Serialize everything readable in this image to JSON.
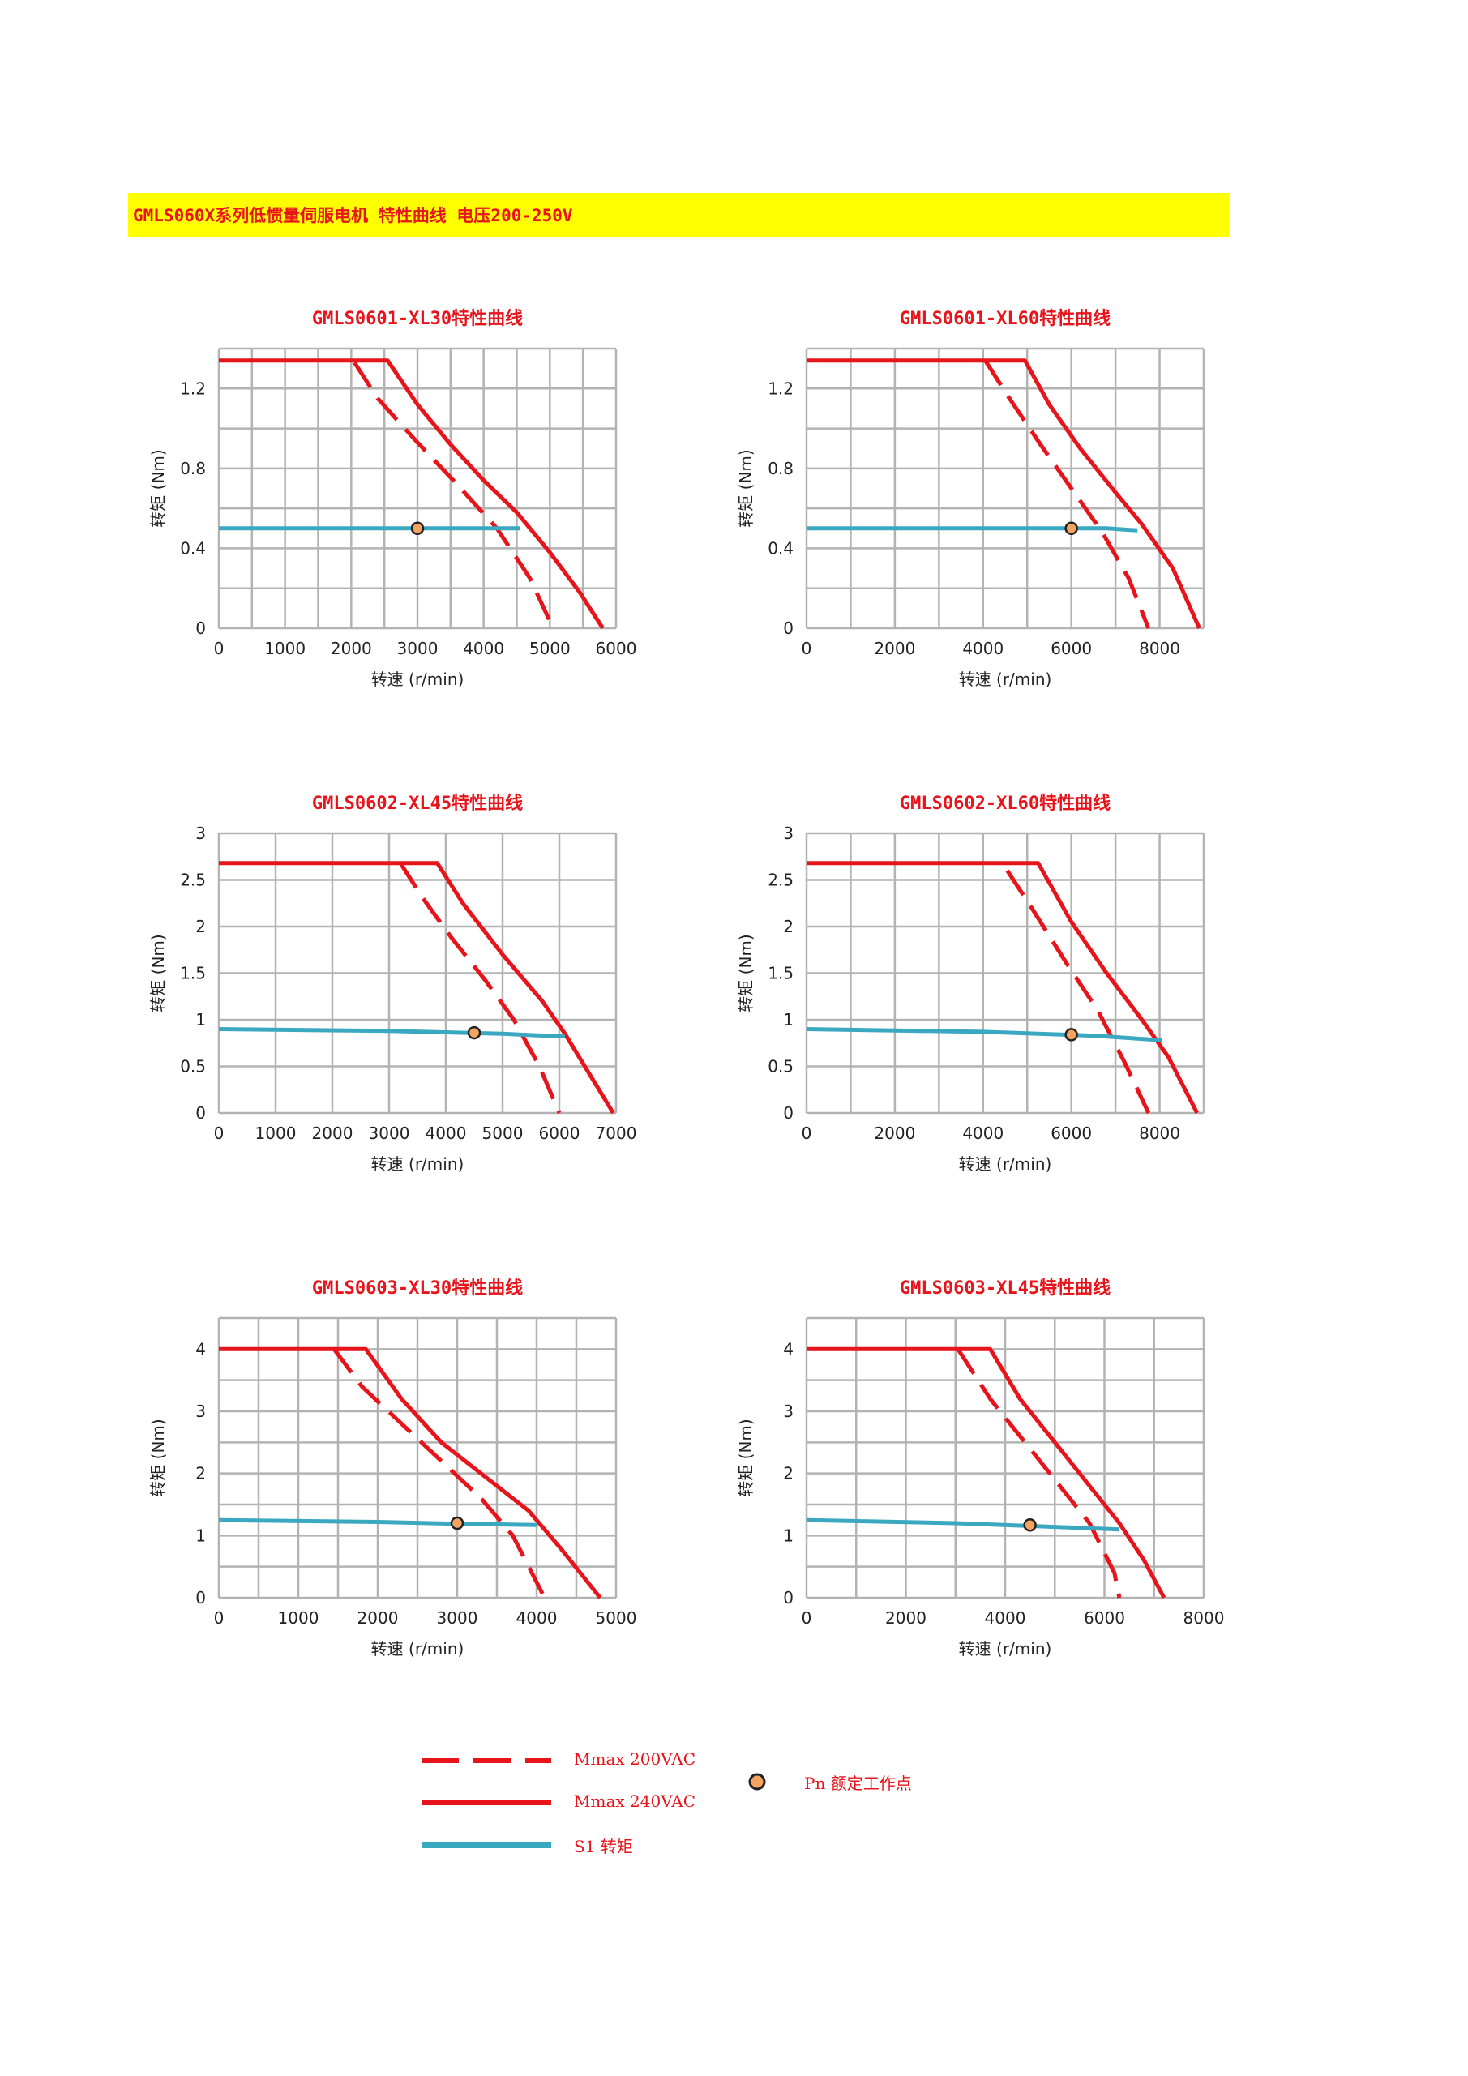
{
  "page": {
    "banner": "GMLS060X系列低惯量伺服电机 特性曲线 电压200-250V"
  },
  "colors": {
    "mmax200": "#e8141b",
    "mmax240": "#e8141b",
    "s1": "#3aa8c1",
    "point": "#f4a460",
    "title": "#e8141b",
    "banner_bg": "#ffff00"
  },
  "legend": {
    "mmax200": "Mmax 200VAC",
    "mmax240": "Mmax 240VAC",
    "s1": "S1 转矩",
    "pn": "Pn 额定工作点"
  },
  "chart_data": [
    {
      "type": "line",
      "title": "GMLS0601-XL30特性曲线",
      "xlabel": "转速 (r/min)",
      "ylabel": "转矩 (Nm)",
      "xlim": [
        0,
        6000
      ],
      "ylim": [
        0,
        1.4
      ],
      "xticks": [
        0,
        1000,
        2000,
        3000,
        4000,
        5000,
        6000
      ],
      "yticks": [
        0,
        0.4,
        0.8,
        1.2
      ],
      "xgrid": [
        0,
        500,
        1000,
        1500,
        2000,
        2500,
        3000,
        3500,
        4000,
        4500,
        5000,
        5500,
        6000
      ],
      "ygrid": [
        0,
        0.2,
        0.4,
        0.6,
        0.8,
        1.0,
        1.2,
        1.4
      ],
      "series": [
        {
          "name": "Mmax 200VAC",
          "style": "dashed",
          "x": [
            2050,
            2400,
            3000,
            3600,
            4200,
            4700,
            5050
          ],
          "y": [
            1.33,
            1.15,
            0.93,
            0.72,
            0.5,
            0.25,
            0.0
          ]
        },
        {
          "name": "Mmax 240VAC",
          "style": "solid",
          "x": [
            0,
            2550,
            3000,
            3500,
            4000,
            4500,
            5000,
            5450,
            5800
          ],
          "y": [
            1.34,
            1.34,
            1.12,
            0.92,
            0.74,
            0.58,
            0.38,
            0.18,
            0.0
          ]
        },
        {
          "name": "S1 转矩",
          "style": "s1",
          "x": [
            0,
            4550
          ],
          "y": [
            0.5,
            0.5
          ]
        }
      ],
      "point": {
        "x": 3000,
        "y": 0.5
      }
    },
    {
      "type": "line",
      "title": "GMLS0601-XL60特性曲线",
      "xlabel": "转速 (r/min)",
      "ylabel": "转矩 (Nm)",
      "xlim": [
        0,
        9000
      ],
      "ylim": [
        0,
        1.4
      ],
      "xticks": [
        0,
        2000,
        4000,
        6000,
        8000
      ],
      "yticks": [
        0,
        0.4,
        0.8,
        1.2
      ],
      "xgrid": [
        0,
        1000,
        2000,
        3000,
        4000,
        5000,
        6000,
        7000,
        8000,
        9000
      ],
      "ygrid": [
        0,
        0.2,
        0.4,
        0.6,
        0.8,
        1.0,
        1.2,
        1.4
      ],
      "series": [
        {
          "name": "Mmax 200VAC",
          "style": "dashed",
          "x": [
            4050,
            4600,
            5300,
            6000,
            6700,
            7300,
            7750
          ],
          "y": [
            1.34,
            1.15,
            0.92,
            0.7,
            0.48,
            0.25,
            0.0
          ]
        },
        {
          "name": "Mmax 240VAC",
          "style": "solid",
          "x": [
            0,
            4950,
            5500,
            6200,
            7000,
            7600,
            8300,
            8900
          ],
          "y": [
            1.34,
            1.34,
            1.12,
            0.9,
            0.68,
            0.52,
            0.3,
            0.0
          ]
        },
        {
          "name": "S1 转矩",
          "style": "s1",
          "x": [
            0,
            5500,
            6800,
            7500
          ],
          "y": [
            0.5,
            0.5,
            0.5,
            0.49
          ]
        }
      ],
      "point": {
        "x": 6000,
        "y": 0.5
      }
    },
    {
      "type": "line",
      "title": "GMLS0602-XL45特性曲线",
      "xlabel": "转速 (r/min)",
      "ylabel": "转矩 (Nm)",
      "xlim": [
        0,
        7000
      ],
      "ylim": [
        0,
        3
      ],
      "xticks": [
        0,
        1000,
        2000,
        3000,
        4000,
        5000,
        6000,
        7000
      ],
      "yticks": [
        0,
        0.5,
        1,
        1.5,
        2,
        2.5,
        3
      ],
      "xgrid": [
        0,
        1000,
        2000,
        3000,
        4000,
        5000,
        6000,
        7000
      ],
      "ygrid": [
        0,
        0.5,
        1,
        1.5,
        2,
        2.5,
        3
      ],
      "series": [
        {
          "name": "Mmax 200VAC",
          "style": "dashed",
          "x": [
            3200,
            3600,
            4100,
            4700,
            5200,
            5650,
            6000
          ],
          "y": [
            2.68,
            2.3,
            1.88,
            1.42,
            1.0,
            0.5,
            0.0
          ]
        },
        {
          "name": "Mmax 240VAC",
          "style": "solid",
          "x": [
            0,
            3850,
            4300,
            5000,
            5700,
            6100,
            6500,
            6950
          ],
          "y": [
            2.68,
            2.68,
            2.25,
            1.7,
            1.2,
            0.85,
            0.45,
            0.0
          ]
        },
        {
          "name": "S1 转矩",
          "style": "s1",
          "x": [
            0,
            3000,
            5000,
            6100
          ],
          "y": [
            0.9,
            0.88,
            0.85,
            0.82
          ]
        }
      ],
      "point": {
        "x": 4500,
        "y": 0.86
      }
    },
    {
      "type": "line",
      "title": "GMLS0602-XL60特性曲线",
      "xlabel": "转速 (r/min)",
      "ylabel": "转矩 (Nm)",
      "xlim": [
        0,
        9000
      ],
      "ylim": [
        0,
        3
      ],
      "xticks": [
        0,
        2000,
        4000,
        6000,
        8000
      ],
      "yticks": [
        0,
        0.5,
        1,
        1.5,
        2,
        2.5,
        3
      ],
      "xgrid": [
        0,
        1000,
        2000,
        3000,
        4000,
        5000,
        6000,
        7000,
        8000,
        9000
      ],
      "ygrid": [
        0,
        0.5,
        1,
        1.5,
        2,
        2.5,
        3
      ],
      "series": [
        {
          "name": "Mmax 200VAC",
          "style": "dashed",
          "x": [
            4550,
            5100,
            5900,
            6600,
            7200,
            7750
          ],
          "y": [
            2.6,
            2.2,
            1.6,
            1.1,
            0.55,
            0.0
          ]
        },
        {
          "name": "Mmax 240VAC",
          "style": "solid",
          "x": [
            0,
            5250,
            6000,
            6800,
            7600,
            8200,
            8850
          ],
          "y": [
            2.68,
            2.68,
            2.05,
            1.5,
            1.0,
            0.6,
            0.0
          ]
        },
        {
          "name": "S1 转矩",
          "style": "s1",
          "x": [
            0,
            4000,
            6500,
            8050
          ],
          "y": [
            0.9,
            0.87,
            0.83,
            0.78
          ]
        }
      ],
      "point": {
        "x": 6000,
        "y": 0.84
      }
    },
    {
      "type": "line",
      "title": "GMLS0603-XL30特性曲线",
      "xlabel": "转速 (r/min)",
      "ylabel": "转矩 (Nm)",
      "xlim": [
        0,
        5000
      ],
      "ylim": [
        0,
        4.5
      ],
      "xticks": [
        0,
        1000,
        2000,
        3000,
        4000,
        5000
      ],
      "yticks": [
        0,
        1,
        2,
        3,
        4
      ],
      "xgrid": [
        0,
        500,
        1000,
        1500,
        2000,
        2500,
        3000,
        3500,
        4000,
        4500,
        5000
      ],
      "ygrid": [
        0,
        0.5,
        1,
        1.5,
        2,
        2.5,
        3,
        3.5,
        4,
        4.5
      ],
      "series": [
        {
          "name": "Mmax 200VAC",
          "style": "dashed",
          "x": [
            1450,
            1800,
            2300,
            2800,
            3300,
            3700,
            4100
          ],
          "y": [
            4.0,
            3.4,
            2.8,
            2.2,
            1.6,
            1.0,
            0.0
          ]
        },
        {
          "name": "Mmax 240VAC",
          "style": "solid",
          "x": [
            0,
            1850,
            2300,
            2800,
            3300,
            3900,
            4300,
            4800
          ],
          "y": [
            4.0,
            4.0,
            3.2,
            2.5,
            2.0,
            1.4,
            0.8,
            0.0
          ]
        },
        {
          "name": "S1 转矩",
          "style": "s1",
          "x": [
            0,
            2000,
            3000,
            4000
          ],
          "y": [
            1.25,
            1.22,
            1.19,
            1.17
          ]
        }
      ],
      "point": {
        "x": 3000,
        "y": 1.2
      }
    },
    {
      "type": "line",
      "title": "GMLS0603-XL45特性曲线",
      "xlabel": "转速 (r/min)",
      "ylabel": "转矩 (Nm)",
      "xlim": [
        0,
        8000
      ],
      "ylim": [
        0,
        4.5
      ],
      "xticks": [
        0,
        2000,
        4000,
        6000,
        8000
      ],
      "yticks": [
        0,
        1,
        2,
        3,
        4
      ],
      "xgrid": [
        0,
        1000,
        2000,
        3000,
        4000,
        5000,
        6000,
        7000,
        8000
      ],
      "ygrid": [
        0,
        0.5,
        1,
        1.5,
        2,
        2.5,
        3,
        3.5,
        4,
        4.5
      ],
      "series": [
        {
          "name": "Mmax 200VAC",
          "style": "dashed",
          "x": [
            3050,
            3700,
            4400,
            5100,
            5700,
            6200,
            6300
          ],
          "y": [
            4.0,
            3.2,
            2.5,
            1.8,
            1.2,
            0.4,
            0.0
          ]
        },
        {
          "name": "Mmax 240VAC",
          "style": "solid",
          "x": [
            0,
            3700,
            4300,
            5000,
            5700,
            6300,
            6800,
            7200
          ],
          "y": [
            4.0,
            4.0,
            3.2,
            2.5,
            1.8,
            1.2,
            0.6,
            0.0
          ]
        },
        {
          "name": "S1 转矩",
          "style": "s1",
          "x": [
            0,
            3000,
            5000,
            6300
          ],
          "y": [
            1.25,
            1.2,
            1.14,
            1.1
          ]
        }
      ],
      "point": {
        "x": 4500,
        "y": 1.17
      }
    }
  ]
}
